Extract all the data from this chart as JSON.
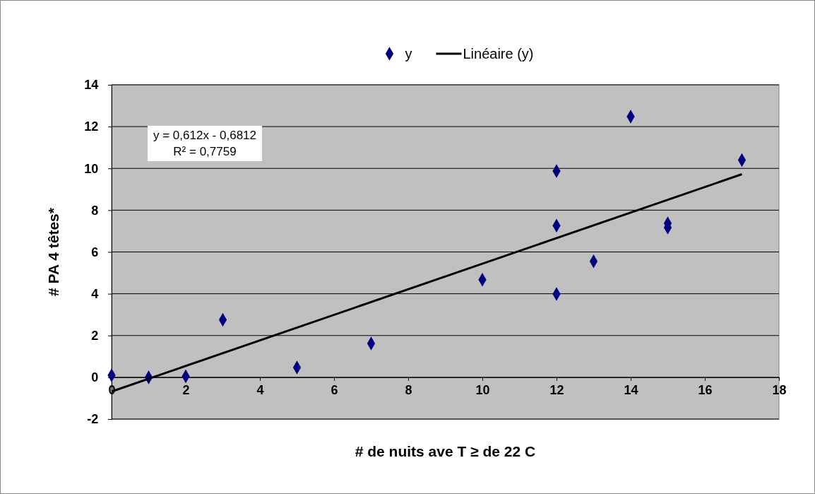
{
  "chart_data": {
    "type": "scatter",
    "xlabel": "# de nuits ave T ≥ de 22 C",
    "ylabel": "# PA  4 têtes*",
    "xlim": [
      0,
      18
    ],
    "xticks": [
      0,
      2,
      4,
      6,
      8,
      10,
      12,
      14,
      16,
      18
    ],
    "ylim": [
      -2,
      14
    ],
    "yticks": [
      -2,
      0,
      2,
      4,
      6,
      8,
      10,
      12,
      14
    ],
    "grid": "y",
    "legend": "top",
    "annotations": [
      "y = 0,612x - 0,6812",
      "R² = 0,7759"
    ],
    "series": [
      {
        "name": "y",
        "marker": "diamond",
        "color": "#000080",
        "x": [
          0,
          1,
          2,
          3,
          5,
          7,
          10,
          12,
          12,
          12,
          13,
          14,
          15,
          15,
          17
        ],
        "values": [
          0.1,
          0,
          0.05,
          2.75,
          0.47,
          1.62,
          4.67,
          9.87,
          7.26,
          3.99,
          5.55,
          12.48,
          7.37,
          7.17,
          10.4
        ]
      },
      {
        "name": "Linéaire (y)",
        "type": "line",
        "color": "#000000",
        "line_style": "solid",
        "marker": "none",
        "x": [
          0,
          17
        ],
        "values": [
          -0.68,
          9.72
        ]
      }
    ]
  }
}
